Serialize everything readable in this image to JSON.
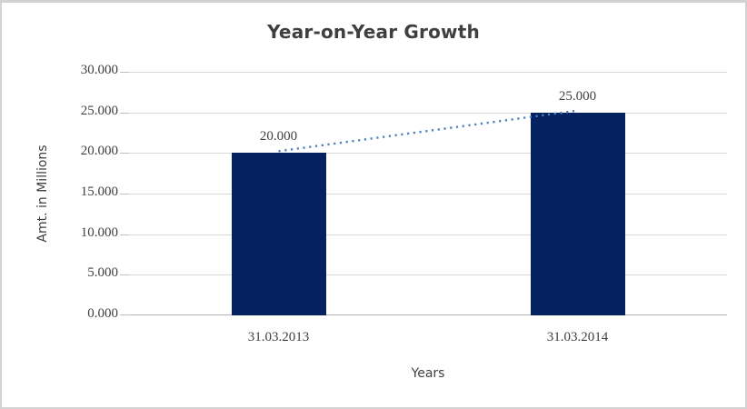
{
  "chart_data": {
    "type": "bar",
    "title": "Year-on-Year Growth",
    "categories": [
      "31.03.2013",
      "31.03.2014"
    ],
    "values": [
      20.0,
      25.0
    ],
    "data_labels": [
      "20.000",
      "25.000"
    ],
    "xlabel": "Years",
    "ylabel": "Amt. in Millions",
    "ylim": [
      0,
      30
    ],
    "ytick_step": 5,
    "ytick_labels": [
      "0.000",
      "5.000",
      "10.000",
      "15.000",
      "20.000",
      "25.000",
      "30.000"
    ],
    "grid": true,
    "legend": "none",
    "trendline": {
      "style": "dotted",
      "from_value": 20.0,
      "to_value": 25.0
    },
    "colors": {
      "bar": "#042260",
      "trendline": "#4f81bd",
      "gridline": "#d9d9d9",
      "axis_line": "#b7b7b7",
      "tick_mark": "#bfbfbf",
      "text": "#404040",
      "frame_border": "#d2d2d2"
    }
  }
}
